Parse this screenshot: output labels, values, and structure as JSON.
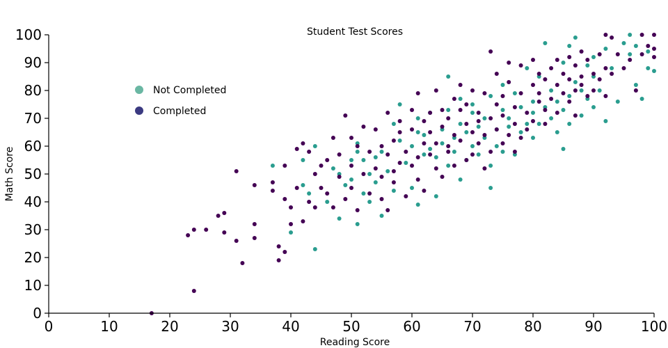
{
  "chart_data": {
    "type": "scatter",
    "title": "Student Test Scores",
    "xlabel": "Reading Score",
    "ylabel": "Math Score",
    "xlim": [
      0,
      100
    ],
    "ylim": [
      0,
      100
    ],
    "xticks": [
      "0",
      "10",
      "20",
      "30",
      "40",
      "50",
      "60",
      "70",
      "80",
      "90",
      "100"
    ],
    "yticks": [
      "0",
      "10",
      "20",
      "30",
      "40",
      "50",
      "60",
      "70",
      "80",
      "90",
      "100"
    ],
    "grid": false,
    "legend_position": "top-left",
    "series": [
      {
        "name": "Not Completed",
        "color": "#2a9d8f",
        "legend_color": "#6ab7a3",
        "points": [
          [
            37,
            53
          ],
          [
            40,
            29
          ],
          [
            42,
            55
          ],
          [
            42,
            46
          ],
          [
            43,
            43
          ],
          [
            44,
            60
          ],
          [
            44,
            23
          ],
          [
            46,
            40
          ],
          [
            47,
            52
          ],
          [
            48,
            50
          ],
          [
            48,
            34
          ],
          [
            49,
            46
          ],
          [
            50,
            48
          ],
          [
            50,
            55
          ],
          [
            51,
            61
          ],
          [
            51,
            58
          ],
          [
            51,
            32
          ],
          [
            52,
            43
          ],
          [
            52,
            55
          ],
          [
            53,
            40
          ],
          [
            53,
            50
          ],
          [
            54,
            47
          ],
          [
            54,
            56
          ],
          [
            55,
            58
          ],
          [
            55,
            35
          ],
          [
            56,
            51
          ],
          [
            57,
            44
          ],
          [
            57,
            68
          ],
          [
            58,
            62
          ],
          [
            58,
            75
          ],
          [
            59,
            54
          ],
          [
            60,
            45
          ],
          [
            60,
            60
          ],
          [
            61,
            39
          ],
          [
            61,
            70
          ],
          [
            61,
            65
          ],
          [
            62,
            57
          ],
          [
            62,
            64
          ],
          [
            63,
            59
          ],
          [
            63,
            72
          ],
          [
            64,
            56
          ],
          [
            64,
            42
          ],
          [
            65,
            66
          ],
          [
            65,
            61
          ],
          [
            66,
            85
          ],
          [
            66,
            53
          ],
          [
            66,
            73
          ],
          [
            67,
            63
          ],
          [
            67,
            58
          ],
          [
            68,
            48
          ],
          [
            68,
            68
          ],
          [
            68,
            77
          ],
          [
            69,
            55
          ],
          [
            69,
            65
          ],
          [
            70,
            60
          ],
          [
            70,
            72
          ],
          [
            70,
            75
          ],
          [
            71,
            57
          ],
          [
            71,
            67
          ],
          [
            72,
            70
          ],
          [
            72,
            63
          ],
          [
            73,
            45
          ],
          [
            73,
            53
          ],
          [
            73,
            78
          ],
          [
            74,
            66
          ],
          [
            74,
            60
          ],
          [
            75,
            73
          ],
          [
            75,
            58
          ],
          [
            75,
            82
          ],
          [
            76,
            70
          ],
          [
            76,
            67
          ],
          [
            77,
            79
          ],
          [
            77,
            57
          ],
          [
            78,
            74
          ],
          [
            78,
            65
          ],
          [
            79,
            68
          ],
          [
            79,
            88
          ],
          [
            80,
            72
          ],
          [
            80,
            76
          ],
          [
            80,
            63
          ],
          [
            81,
            85
          ],
          [
            81,
            68
          ],
          [
            82,
            97
          ],
          [
            82,
            74
          ],
          [
            83,
            70
          ],
          [
            83,
            80
          ],
          [
            84,
            65
          ],
          [
            84,
            76
          ],
          [
            85,
            90
          ],
          [
            85,
            59
          ],
          [
            85,
            73
          ],
          [
            86,
            96
          ],
          [
            86,
            78
          ],
          [
            86,
            68
          ],
          [
            87,
            83
          ],
          [
            87,
            99
          ],
          [
            88,
            80
          ],
          [
            88,
            71
          ],
          [
            89,
            89
          ],
          [
            89,
            77
          ],
          [
            90,
            92
          ],
          [
            90,
            85
          ],
          [
            90,
            74
          ],
          [
            91,
            80
          ],
          [
            92,
            69
          ],
          [
            92,
            95
          ],
          [
            93,
            88
          ],
          [
            94,
            76
          ],
          [
            95,
            97
          ],
          [
            96,
            100
          ],
          [
            96,
            93
          ],
          [
            97,
            96
          ],
          [
            97,
            82
          ],
          [
            98,
            77
          ],
          [
            99,
            94
          ],
          [
            99,
            88
          ],
          [
            100,
            87
          ]
        ]
      },
      {
        "name": "Completed",
        "color": "#440154",
        "legend_color": "#3b3a81",
        "points": [
          [
            17,
            0
          ],
          [
            23,
            28
          ],
          [
            24,
            8
          ],
          [
            24,
            30
          ],
          [
            26,
            30
          ],
          [
            28,
            35
          ],
          [
            29,
            29
          ],
          [
            29,
            36
          ],
          [
            31,
            51
          ],
          [
            31,
            26
          ],
          [
            32,
            18
          ],
          [
            34,
            27
          ],
          [
            34,
            46
          ],
          [
            34,
            32
          ],
          [
            37,
            47
          ],
          [
            37,
            44
          ],
          [
            38,
            24
          ],
          [
            38,
            19
          ],
          [
            39,
            53
          ],
          [
            39,
            41
          ],
          [
            39,
            22
          ],
          [
            40,
            32
          ],
          [
            40,
            38
          ],
          [
            41,
            45
          ],
          [
            41,
            59
          ],
          [
            42,
            33
          ],
          [
            42,
            61
          ],
          [
            43,
            40
          ],
          [
            43,
            58
          ],
          [
            44,
            50
          ],
          [
            44,
            38
          ],
          [
            45,
            53
          ],
          [
            45,
            45
          ],
          [
            46,
            43
          ],
          [
            46,
            55
          ],
          [
            47,
            38
          ],
          [
            47,
            63
          ],
          [
            48,
            49
          ],
          [
            48,
            57
          ],
          [
            49,
            71
          ],
          [
            49,
            41
          ],
          [
            50,
            53
          ],
          [
            50,
            45
          ],
          [
            50,
            63
          ],
          [
            51,
            60
          ],
          [
            51,
            37
          ],
          [
            52,
            50
          ],
          [
            52,
            67
          ],
          [
            53,
            58
          ],
          [
            53,
            43
          ],
          [
            54,
            66
          ],
          [
            54,
            52
          ],
          [
            55,
            41
          ],
          [
            55,
            60
          ],
          [
            55,
            49
          ],
          [
            56,
            57
          ],
          [
            56,
            72
          ],
          [
            56,
            37
          ],
          [
            57,
            51
          ],
          [
            57,
            62
          ],
          [
            57,
            47
          ],
          [
            58,
            54
          ],
          [
            58,
            69
          ],
          [
            58,
            65
          ],
          [
            59,
            58
          ],
          [
            59,
            42
          ],
          [
            60,
            73
          ],
          [
            60,
            53
          ],
          [
            60,
            66
          ],
          [
            61,
            79
          ],
          [
            61,
            56
          ],
          [
            61,
            48
          ],
          [
            62,
            61
          ],
          [
            62,
            69
          ],
          [
            62,
            44
          ],
          [
            63,
            72
          ],
          [
            63,
            57
          ],
          [
            63,
            65
          ],
          [
            64,
            80
          ],
          [
            64,
            52
          ],
          [
            64,
            61
          ],
          [
            65,
            67
          ],
          [
            65,
            73
          ],
          [
            65,
            49
          ],
          [
            66,
            60
          ],
          [
            66,
            70
          ],
          [
            66,
            58
          ],
          [
            67,
            77
          ],
          [
            67,
            64
          ],
          [
            67,
            53
          ],
          [
            68,
            73
          ],
          [
            68,
            62
          ],
          [
            68,
            82
          ],
          [
            69,
            68
          ],
          [
            69,
            55
          ],
          [
            69,
            75
          ],
          [
            70,
            65
          ],
          [
            70,
            80
          ],
          [
            70,
            57
          ],
          [
            71,
            72
          ],
          [
            71,
            61
          ],
          [
            71,
            69
          ],
          [
            72,
            79
          ],
          [
            72,
            64
          ],
          [
            72,
            52
          ],
          [
            73,
            94
          ],
          [
            73,
            70
          ],
          [
            73,
            58
          ],
          [
            74,
            75
          ],
          [
            74,
            66
          ],
          [
            74,
            86
          ],
          [
            75,
            61
          ],
          [
            75,
            78
          ],
          [
            75,
            71
          ],
          [
            76,
            83
          ],
          [
            76,
            64
          ],
          [
            76,
            90
          ],
          [
            77,
            74
          ],
          [
            77,
            68
          ],
          [
            77,
            58
          ],
          [
            78,
            89
          ],
          [
            78,
            79
          ],
          [
            78,
            63
          ],
          [
            79,
            72
          ],
          [
            79,
            66
          ],
          [
            80,
            82
          ],
          [
            80,
            91
          ],
          [
            80,
            69
          ],
          [
            81,
            76
          ],
          [
            81,
            86
          ],
          [
            81,
            79
          ],
          [
            82,
            73
          ],
          [
            82,
            84
          ],
          [
            82,
            68
          ],
          [
            83,
            88
          ],
          [
            83,
            77
          ],
          [
            84,
            82
          ],
          [
            84,
            91
          ],
          [
            84,
            72
          ],
          [
            85,
            86
          ],
          [
            85,
            79
          ],
          [
            86,
            92
          ],
          [
            86,
            76
          ],
          [
            86,
            84
          ],
          [
            87,
            89
          ],
          [
            87,
            80
          ],
          [
            87,
            71
          ],
          [
            88,
            94
          ],
          [
            88,
            82
          ],
          [
            88,
            85
          ],
          [
            89,
            78
          ],
          [
            89,
            91
          ],
          [
            90,
            86
          ],
          [
            90,
            80
          ],
          [
            91,
            93
          ],
          [
            91,
            84
          ],
          [
            92,
            100
          ],
          [
            92,
            88
          ],
          [
            92,
            78
          ],
          [
            93,
            99
          ],
          [
            93,
            86
          ],
          [
            94,
            93
          ],
          [
            95,
            88
          ],
          [
            96,
            91
          ],
          [
            97,
            80
          ],
          [
            98,
            100
          ],
          [
            98,
            93
          ],
          [
            99,
            96
          ],
          [
            100,
            100
          ],
          [
            100,
            92
          ],
          [
            100,
            95
          ]
        ]
      }
    ]
  }
}
